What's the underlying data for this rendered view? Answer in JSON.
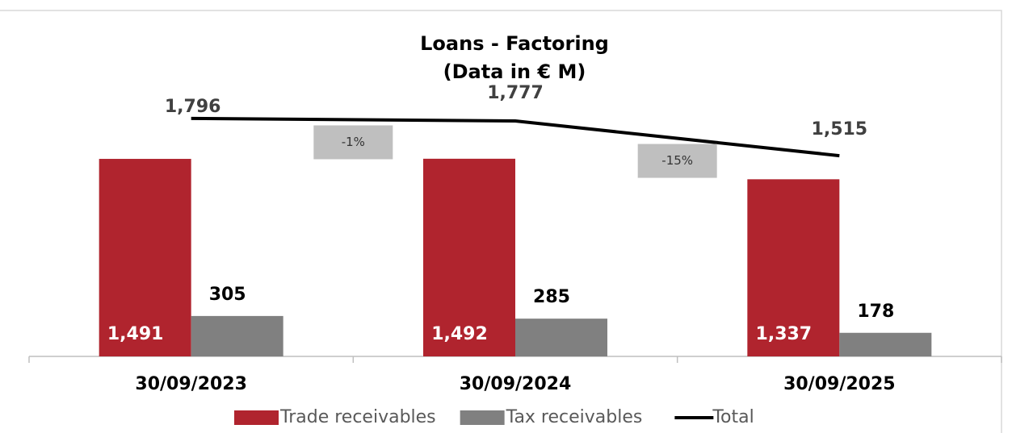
{
  "chart_data": {
    "type": "bar",
    "title": "Loans - Factoring",
    "subtitle": "(Data in € M)",
    "categories": [
      "30/09/2023",
      "30/09/2024",
      "30/09/2025"
    ],
    "series": [
      {
        "name": "Trade receivables",
        "type": "bar",
        "color": "#b0242e",
        "values": [
          1491,
          1492,
          1337
        ],
        "value_labels": [
          "1,491",
          "1,492",
          "1,337"
        ]
      },
      {
        "name": "Tax receivables",
        "type": "bar",
        "color": "#808080",
        "values": [
          305,
          285,
          178
        ]
      },
      {
        "name": "Total",
        "type": "line",
        "color": "#000000",
        "values": [
          1796,
          1777,
          1515
        ],
        "value_labels": [
          "1,796",
          "1,777",
          "1,515"
        ]
      }
    ],
    "annotations": [
      "-1%",
      "-15%"
    ],
    "ylim": [
      0,
      2000
    ],
    "legend": "bottom"
  }
}
